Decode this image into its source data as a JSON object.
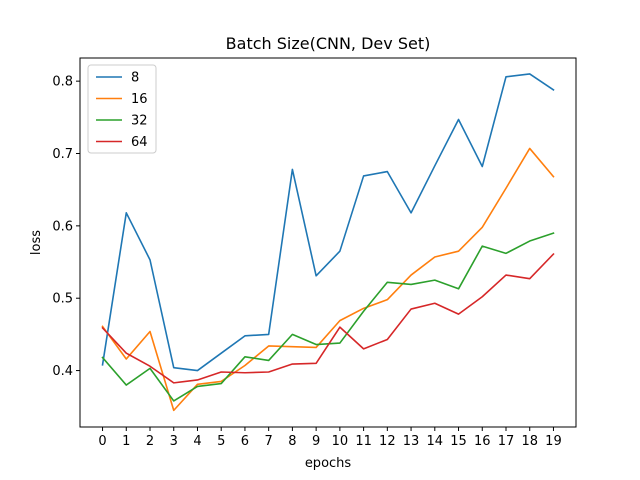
{
  "chart_data": {
    "type": "line",
    "title": "Batch Size(CNN, Dev Set)",
    "xlabel": "epochs",
    "ylabel": "loss",
    "x": [
      0,
      1,
      2,
      3,
      4,
      5,
      6,
      7,
      8,
      9,
      10,
      11,
      12,
      13,
      14,
      15,
      16,
      17,
      18,
      19
    ],
    "x_tick_labels": [
      "0",
      "1",
      "2",
      "3",
      "4",
      "5",
      "6",
      "7",
      "8",
      "9",
      "10",
      "11",
      "12",
      "13",
      "14",
      "15",
      "16",
      "17",
      "18",
      "19"
    ],
    "y_ticks": [
      0.4,
      0.5,
      0.6,
      0.7,
      0.8
    ],
    "y_tick_labels": [
      "0.4",
      "0.5",
      "0.6",
      "0.7",
      "0.8"
    ],
    "xlim": [
      -0.95,
      19.95
    ],
    "ylim": [
      0.322,
      0.832
    ],
    "grid": false,
    "legend_position": "top-left",
    "series": [
      {
        "name": "8",
        "color": "#1f77b4",
        "values": [
          0.408,
          0.618,
          0.553,
          0.404,
          0.4,
          0.424,
          0.448,
          0.45,
          0.678,
          0.531,
          0.565,
          0.669,
          0.675,
          0.618,
          0.683,
          0.747,
          0.682,
          0.806,
          0.81,
          0.788
        ]
      },
      {
        "name": "16",
        "color": "#ff7f0e",
        "values": [
          0.461,
          0.416,
          0.454,
          0.345,
          0.381,
          0.385,
          0.407,
          0.434,
          0.433,
          0.432,
          0.469,
          0.486,
          0.498,
          0.532,
          0.557,
          0.565,
          0.598,
          0.652,
          0.707,
          0.668
        ]
      },
      {
        "name": "32",
        "color": "#2ca02c",
        "values": [
          0.418,
          0.38,
          0.403,
          0.358,
          0.378,
          0.382,
          0.419,
          0.414,
          0.45,
          0.436,
          0.438,
          0.482,
          0.522,
          0.519,
          0.525,
          0.513,
          0.572,
          0.562,
          0.579,
          0.59
        ]
      },
      {
        "name": "64",
        "color": "#d62728",
        "values": [
          0.459,
          0.424,
          0.406,
          0.383,
          0.387,
          0.398,
          0.397,
          0.398,
          0.409,
          0.41,
          0.46,
          0.43,
          0.443,
          0.485,
          0.493,
          0.478,
          0.502,
          0.532,
          0.527,
          0.561
        ]
      }
    ]
  }
}
